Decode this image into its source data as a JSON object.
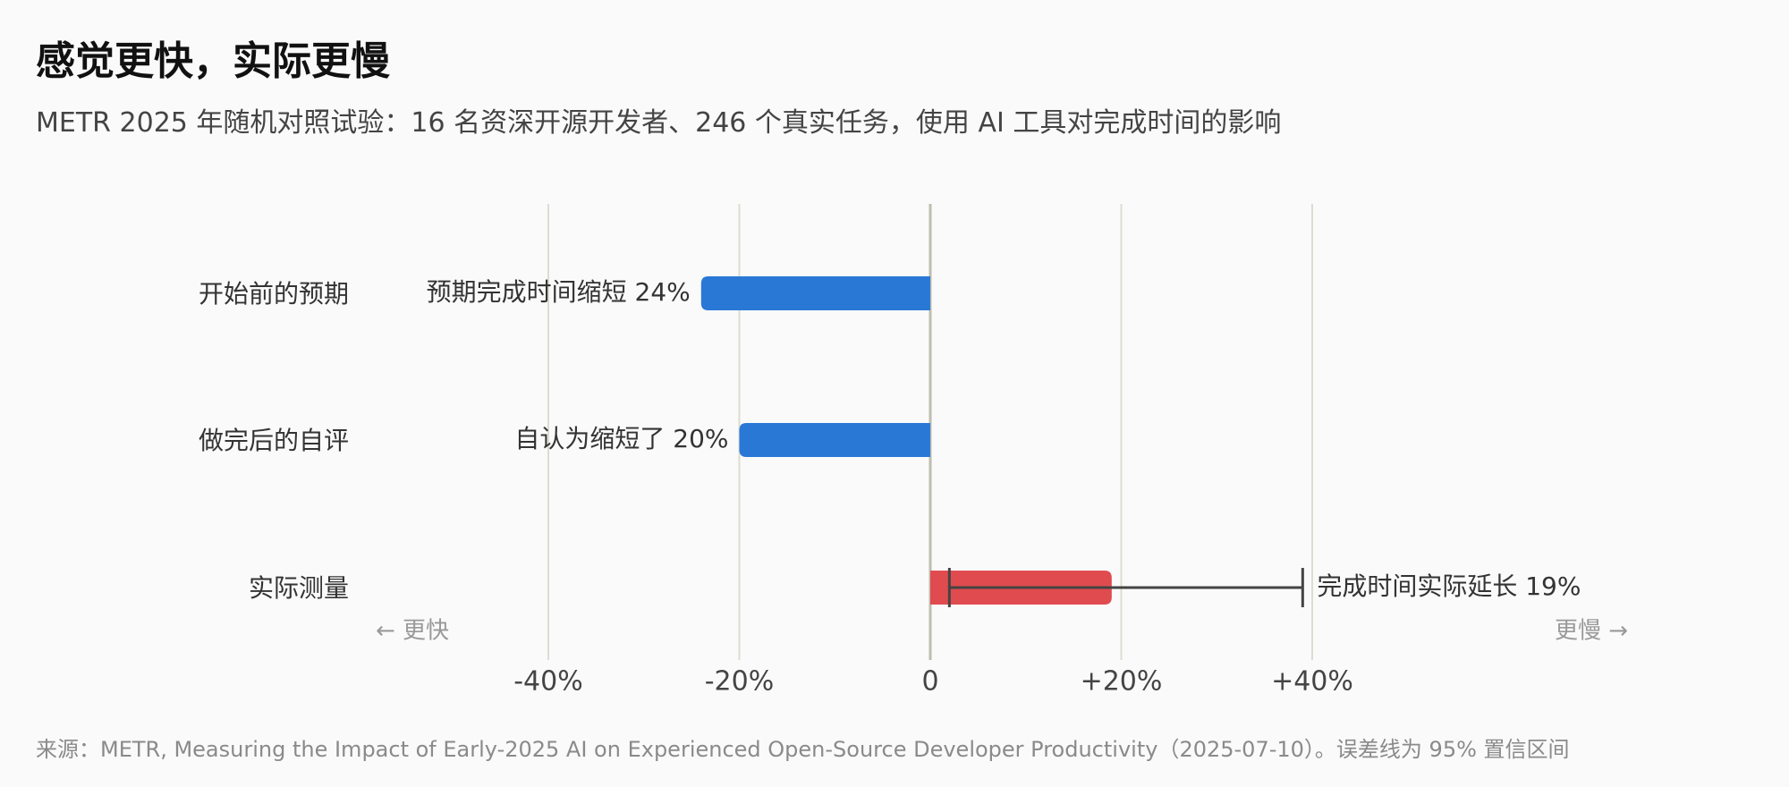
{
  "title": "感觉更快，实际更慢",
  "subtitle": "METR 2025 年随机对照试验：16 名资深开源开发者、246 个真实任务，使用 AI 工具对完成时间的影响",
  "source": "来源：METR, Measuring the Impact of Early-2025 AI on Experienced Open-Source Developer Productivity（2025-07-10）。误差线为 95% 置信区间",
  "chart_data": {
    "type": "bar",
    "orientation": "horizontal",
    "categories": [
      "开始前的预期",
      "做完后的自评",
      "实际测量"
    ],
    "values": [
      -24,
      -20,
      19
    ],
    "data_labels": [
      "预期完成时间缩短 24%",
      "自认为缩短了 20%",
      "完成时间实际延长 19%"
    ],
    "error_bar": {
      "category": "实际测量",
      "low": 2,
      "high": 39
    },
    "xlim": [
      -40,
      40
    ],
    "xticks": [
      -40,
      -20,
      0,
      20,
      40
    ],
    "xtick_labels": [
      "-40%",
      "-20%",
      "0",
      "+20%",
      "+40%"
    ],
    "direction_labels": {
      "left": "← 更快",
      "right": "更慢 →"
    },
    "grid": true,
    "colors": {
      "negative": "#2a78d6",
      "positive": "#e04b4f",
      "grid": "#dcdcd2",
      "zero_line": "#bdbdb2",
      "error_bar": "#444444"
    }
  }
}
